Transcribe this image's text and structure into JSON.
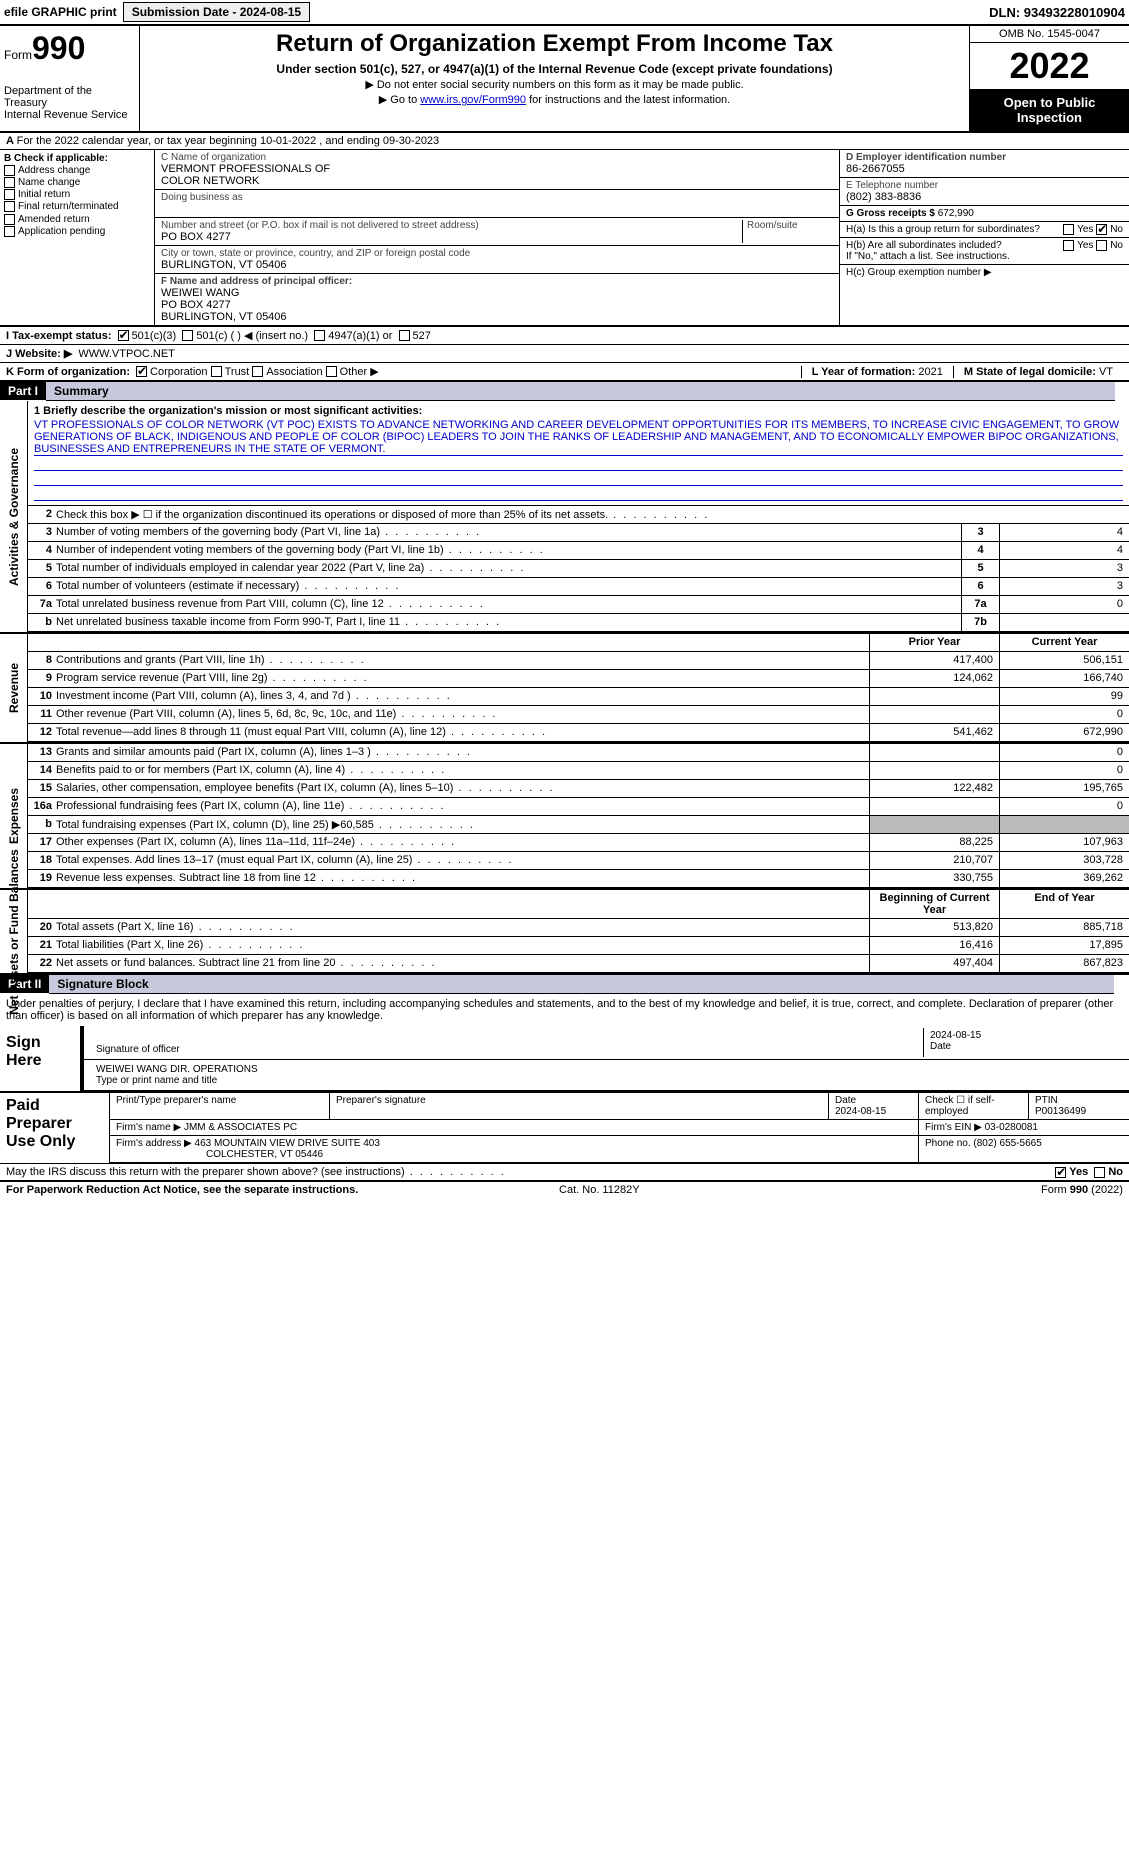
{
  "topbar": {
    "efile": "efile GRAPHIC print",
    "submission_label": "Submission Date - 2024-08-15",
    "dln_label": "DLN: 93493228010904"
  },
  "header": {
    "form_word": "Form",
    "form_num": "990",
    "dept": "Department of the Treasury",
    "irs": "Internal Revenue Service",
    "title": "Return of Organization Exempt From Income Tax",
    "subtitle": "Under section 501(c), 527, or 4947(a)(1) of the Internal Revenue Code (except private foundations)",
    "note1": "▶ Do not enter social security numbers on this form as it may be made public.",
    "note2_pre": "▶ Go to ",
    "note2_link": "www.irs.gov/Form990",
    "note2_post": " for instructions and the latest information.",
    "omb": "OMB No. 1545-0047",
    "year": "2022",
    "open": "Open to Public Inspection"
  },
  "row_a": "For the 2022 calendar year, or tax year beginning 10-01-2022    , and ending 09-30-2023",
  "col_b": {
    "title": "B Check if applicable:",
    "addr": "Address change",
    "name": "Name change",
    "initial": "Initial return",
    "final": "Final return/terminated",
    "amended": "Amended return",
    "app": "Application pending"
  },
  "org": {
    "c_label": "C Name of organization",
    "name1": "VERMONT PROFESSIONALS OF",
    "name2": "COLOR NETWORK",
    "dba_label": "Doing business as",
    "addr_label": "Number and street (or P.O. box if mail is not delivered to street address)",
    "room_label": "Room/suite",
    "addr": "PO BOX 4277",
    "city_label": "City or town, state or province, country, and ZIP or foreign postal code",
    "city": "BURLINGTON, VT  05406",
    "f_label": "F  Name and address of principal officer:",
    "officer": "WEIWEI WANG",
    "officer_addr": "PO BOX 4277",
    "officer_city": "BURLINGTON, VT  05406"
  },
  "right": {
    "d_label": "D Employer identification number",
    "ein": "86-2667055",
    "e_label": "E Telephone number",
    "phone": "(802) 383-8836",
    "g_label": "G Gross receipts $",
    "gross": "672,990",
    "ha_label": "H(a)  Is this a group return for subordinates?",
    "hb_label": "H(b)  Are all subordinates included?",
    "hb_note": "If \"No,\" attach a list. See instructions.",
    "hc_label": "H(c)  Group exemption number ▶",
    "yes": "Yes",
    "no": "No"
  },
  "row_i": {
    "label": "I  Tax-exempt status:",
    "o1": "501(c)(3)",
    "o2": "501(c) (  ) ◀ (insert no.)",
    "o3": "4947(a)(1) or",
    "o4": "527"
  },
  "row_j": {
    "label": "J  Website: ▶",
    "val": "WWW.VTPOC.NET"
  },
  "row_k": {
    "label": "K Form of organization:",
    "corp": "Corporation",
    "trust": "Trust",
    "assoc": "Association",
    "other": "Other ▶"
  },
  "row_l": {
    "label": "L Year of formation:",
    "val": "2021"
  },
  "row_m": {
    "label": "M State of legal domicile:",
    "val": "VT"
  },
  "parts": {
    "p1": "Part I",
    "p1_title": "Summary",
    "p2": "Part II",
    "p2_title": "Signature Block"
  },
  "vlabels": {
    "gov": "Activities & Governance",
    "rev": "Revenue",
    "exp": "Expenses",
    "net": "Net Assets or Fund Balances"
  },
  "mission": {
    "q": "1  Briefly describe the organization's mission or most significant activities:",
    "text": "VT PROFESSIONALS OF COLOR NETWORK (VT POC) EXISTS TO ADVANCE NETWORKING AND CAREER DEVELOPMENT OPPORTUNITIES FOR ITS MEMBERS, TO INCREASE CIVIC ENGAGEMENT, TO GROW GENERATIONS OF BLACK, INDIGENOUS AND PEOPLE OF COLOR (BIPOC) LEADERS TO JOIN THE RANKS OF LEADERSHIP AND MANAGEMENT, AND TO ECONOMICALLY EMPOWER BIPOC ORGANIZATIONS, BUSINESSES AND ENTREPRENEURS IN THE STATE OF VERMONT."
  },
  "gov_lines": [
    {
      "n": "2",
      "d": "Check this box ▶ ☐  if the organization discontinued its operations or disposed of more than 25% of its net assets."
    },
    {
      "n": "3",
      "d": "Number of voting members of the governing body (Part VI, line 1a)",
      "box": "3",
      "v": "4"
    },
    {
      "n": "4",
      "d": "Number of independent voting members of the governing body (Part VI, line 1b)",
      "box": "4",
      "v": "4"
    },
    {
      "n": "5",
      "d": "Total number of individuals employed in calendar year 2022 (Part V, line 2a)",
      "box": "5",
      "v": "3"
    },
    {
      "n": "6",
      "d": "Total number of volunteers (estimate if necessary)",
      "box": "6",
      "v": "3"
    },
    {
      "n": "7a",
      "d": "Total unrelated business revenue from Part VIII, column (C), line 12",
      "box": "7a",
      "v": "0"
    },
    {
      "n": "b",
      "d": "Net unrelated business taxable income from Form 990-T, Part I, line 11",
      "box": "7b",
      "v": ""
    }
  ],
  "col_hdrs": {
    "prior": "Prior Year",
    "current": "Current Year",
    "begin": "Beginning of Current Year",
    "end": "End of Year"
  },
  "rev_lines": [
    {
      "n": "8",
      "d": "Contributions and grants (Part VIII, line 1h)",
      "p": "417,400",
      "c": "506,151"
    },
    {
      "n": "9",
      "d": "Program service revenue (Part VIII, line 2g)",
      "p": "124,062",
      "c": "166,740"
    },
    {
      "n": "10",
      "d": "Investment income (Part VIII, column (A), lines 3, 4, and 7d )",
      "p": "",
      "c": "99"
    },
    {
      "n": "11",
      "d": "Other revenue (Part VIII, column (A), lines 5, 6d, 8c, 9c, 10c, and 11e)",
      "p": "",
      "c": "0"
    },
    {
      "n": "12",
      "d": "Total revenue—add lines 8 through 11 (must equal Part VIII, column (A), line 12)",
      "p": "541,462",
      "c": "672,990"
    }
  ],
  "exp_lines": [
    {
      "n": "13",
      "d": "Grants and similar amounts paid (Part IX, column (A), lines 1–3 )",
      "p": "",
      "c": "0"
    },
    {
      "n": "14",
      "d": "Benefits paid to or for members (Part IX, column (A), line 4)",
      "p": "",
      "c": "0"
    },
    {
      "n": "15",
      "d": "Salaries, other compensation, employee benefits (Part IX, column (A), lines 5–10)",
      "p": "122,482",
      "c": "195,765"
    },
    {
      "n": "16a",
      "d": "Professional fundraising fees (Part IX, column (A), line 11e)",
      "p": "",
      "c": "0"
    },
    {
      "n": "b",
      "d": "Total fundraising expenses (Part IX, column (D), line 25) ▶60,585",
      "p": "shade",
      "c": "shade"
    },
    {
      "n": "17",
      "d": "Other expenses (Part IX, column (A), lines 11a–11d, 11f–24e)",
      "p": "88,225",
      "c": "107,963"
    },
    {
      "n": "18",
      "d": "Total expenses. Add lines 13–17 (must equal Part IX, column (A), line 25)",
      "p": "210,707",
      "c": "303,728"
    },
    {
      "n": "19",
      "d": "Revenue less expenses. Subtract line 18 from line 12",
      "p": "330,755",
      "c": "369,262"
    }
  ],
  "net_lines": [
    {
      "n": "20",
      "d": "Total assets (Part X, line 16)",
      "p": "513,820",
      "c": "885,718"
    },
    {
      "n": "21",
      "d": "Total liabilities (Part X, line 26)",
      "p": "16,416",
      "c": "17,895"
    },
    {
      "n": "22",
      "d": "Net assets or fund balances. Subtract line 21 from line 20",
      "p": "497,404",
      "c": "867,823"
    }
  ],
  "sig": {
    "penalty": "Under penalties of perjury, I declare that I have examined this return, including accompanying schedules and statements, and to the best of my knowledge and belief, it is true, correct, and complete. Declaration of preparer (other than officer) is based on all information of which preparer has any knowledge.",
    "sign_here": "Sign Here",
    "sig_officer": "Signature of officer",
    "date": "Date",
    "date_val": "2024-08-15",
    "type_name": "Type or print name and title",
    "officer_name": "WEIWEI WANG  DIR. OPERATIONS"
  },
  "paid": {
    "title": "Paid Preparer Use Only",
    "h1": "Print/Type preparer's name",
    "h2": "Preparer's signature",
    "h3": "Date",
    "h3v": "2024-08-15",
    "h4": "Check ☐ if self-employed",
    "h5": "PTIN",
    "ptin": "P00136499",
    "firm_label": "Firm's name    ▶",
    "firm": "JMM & ASSOCIATES PC",
    "ein_label": "Firm's EIN ▶",
    "ein": "03-0280081",
    "addr_label": "Firm's address ▶",
    "addr1": "463 MOUNTAIN VIEW DRIVE SUITE 403",
    "addr2": "COLCHESTER, VT  05446",
    "phone_label": "Phone no.",
    "phone": "(802) 655-5665",
    "discuss": "May the IRS discuss this return with the preparer shown above? (see instructions)",
    "yes": "Yes",
    "no": "No"
  },
  "footer": {
    "left": "For Paperwork Reduction Act Notice, see the separate instructions.",
    "mid": "Cat. No. 11282Y",
    "right": "Form 990 (2022)"
  }
}
